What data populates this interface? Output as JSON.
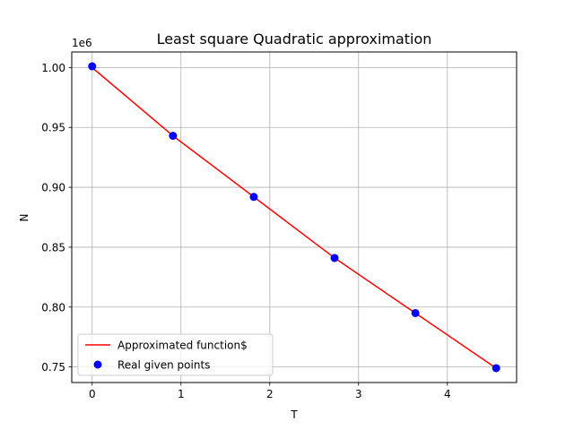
{
  "chart_data": {
    "type": "line",
    "title": "Least square Quadratic approximation",
    "xlabel": "T",
    "ylabel": "N",
    "y_offset_label": "1e6",
    "xlim": [
      -0.23,
      4.78
    ],
    "ylim": [
      737000,
      1013000
    ],
    "x_ticks": [
      {
        "value": 0,
        "label": "0"
      },
      {
        "value": 1,
        "label": "1"
      },
      {
        "value": 2,
        "label": "2"
      },
      {
        "value": 3,
        "label": "3"
      },
      {
        "value": 4,
        "label": "4"
      }
    ],
    "y_ticks": [
      {
        "value": 750000,
        "label": "0.75"
      },
      {
        "value": 800000,
        "label": "0.80"
      },
      {
        "value": 850000,
        "label": "0.85"
      },
      {
        "value": 900000,
        "label": "0.90"
      },
      {
        "value": 950000,
        "label": "0.95"
      },
      {
        "value": 1000000,
        "label": "1.00"
      }
    ],
    "grid": true,
    "legend_position": "lower-left",
    "series": [
      {
        "name": "Approximated function$",
        "kind": "line",
        "color": "#ff0000",
        "x": [
          0,
          0.91,
          1.82,
          2.73,
          3.64,
          4.55
        ],
        "y": [
          1000000,
          943000,
          892000,
          841000,
          795000,
          749000
        ]
      },
      {
        "name": "Real given points",
        "kind": "markers",
        "color": "#0000ff",
        "x": [
          0,
          0.91,
          1.82,
          2.73,
          3.64,
          4.55
        ],
        "y": [
          1001000,
          943000,
          892000,
          841000,
          795000,
          749000
        ]
      }
    ]
  }
}
